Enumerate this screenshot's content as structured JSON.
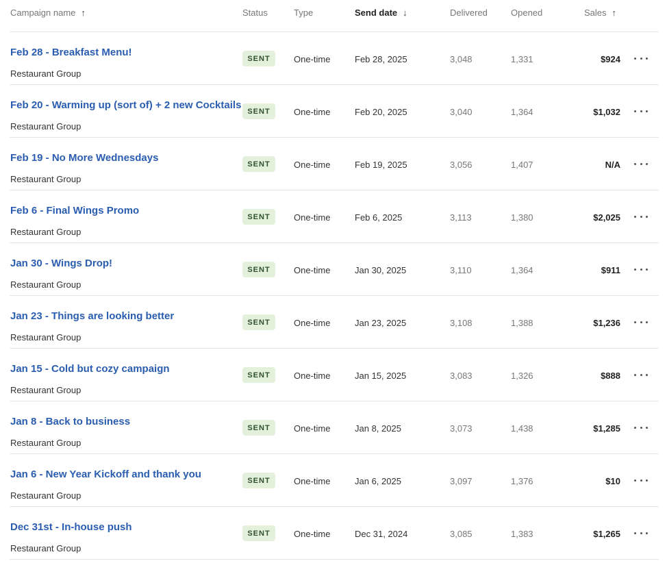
{
  "columns": {
    "campaign_name": "Campaign name",
    "status": "Status",
    "type": "Type",
    "send_date": "Send date",
    "delivered": "Delivered",
    "opened": "Opened",
    "sales": "Sales"
  },
  "sort_icons": {
    "campaign_name": "arrow-up-icon",
    "send_date": "arrow-down-icon",
    "sales": "arrow-up-icon"
  },
  "colors": {
    "link": "#2a5db0",
    "badge_bg": "#e3f1dc",
    "badge_text": "#2f4f2b"
  },
  "rows": [
    {
      "name": "Feb 28 - Breakfast Menu!",
      "group": "Restaurant Group",
      "status": "SENT",
      "type": "One-time",
      "date": "Feb 28, 2025",
      "delivered": "3,048",
      "opened": "1,331",
      "sales": "$924"
    },
    {
      "name": "Feb 20 - Warming up (sort of) + 2 new Cocktails",
      "group": "Restaurant Group",
      "status": "SENT",
      "type": "One-time",
      "date": "Feb 20, 2025",
      "delivered": "3,040",
      "opened": "1,364",
      "sales": "$1,032"
    },
    {
      "name": "Feb 19 - No More Wednesdays",
      "group": "Restaurant Group",
      "status": "SENT",
      "type": "One-time",
      "date": "Feb 19, 2025",
      "delivered": "3,056",
      "opened": "1,407",
      "sales": "N/A"
    },
    {
      "name": "Feb 6 - Final Wings Promo",
      "group": "Restaurant Group",
      "status": "SENT",
      "type": "One-time",
      "date": "Feb 6, 2025",
      "delivered": "3,113",
      "opened": "1,380",
      "sales": "$2,025"
    },
    {
      "name": "Jan 30 - Wings Drop!",
      "group": "Restaurant Group",
      "status": "SENT",
      "type": "One-time",
      "date": "Jan 30, 2025",
      "delivered": "3,110",
      "opened": "1,364",
      "sales": "$911"
    },
    {
      "name": "Jan 23 - Things are looking better",
      "group": "Restaurant Group",
      "status": "SENT",
      "type": "One-time",
      "date": "Jan 23, 2025",
      "delivered": "3,108",
      "opened": "1,388",
      "sales": "$1,236"
    },
    {
      "name": "Jan 15 - Cold but cozy campaign",
      "group": "Restaurant Group",
      "status": "SENT",
      "type": "One-time",
      "date": "Jan 15, 2025",
      "delivered": "3,083",
      "opened": "1,326",
      "sales": "$888"
    },
    {
      "name": "Jan 8 - Back to business",
      "group": "Restaurant Group",
      "status": "SENT",
      "type": "One-time",
      "date": "Jan 8, 2025",
      "delivered": "3,073",
      "opened": "1,438",
      "sales": "$1,285"
    },
    {
      "name": "Jan 6 - New Year Kickoff and thank you",
      "group": "Restaurant Group",
      "status": "SENT",
      "type": "One-time",
      "date": "Jan 6, 2025",
      "delivered": "3,097",
      "opened": "1,376",
      "sales": "$10"
    },
    {
      "name": "Dec 31st - In-house push",
      "group": "Restaurant Group",
      "status": "SENT",
      "type": "One-time",
      "date": "Dec 31, 2024",
      "delivered": "3,085",
      "opened": "1,383",
      "sales": "$1,265"
    }
  ]
}
